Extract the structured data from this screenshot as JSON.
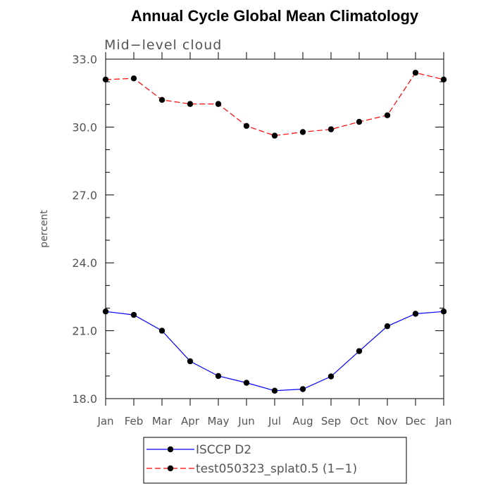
{
  "chart_data": {
    "type": "line",
    "title": "Annual Cycle Global Mean Climatology",
    "subtitle": "Mid−level cloud",
    "xlabel": "",
    "ylabel": "percent",
    "categories": [
      "Jan",
      "Feb",
      "Mar",
      "Apr",
      "May",
      "Jun",
      "Jul",
      "Aug",
      "Sep",
      "Oct",
      "Nov",
      "Dec",
      "Jan"
    ],
    "ylim": [
      18.0,
      33.0
    ],
    "yticks": [
      "18.0",
      "21.0",
      "24.0",
      "27.0",
      "30.0",
      "33.0"
    ],
    "ytick_values": [
      18,
      21,
      24,
      27,
      30,
      33
    ],
    "grid": false,
    "legend_position": "bottom",
    "series": [
      {
        "name": "ISCCP D2",
        "color": "#0000ff",
        "dash": "solid",
        "marker": "filled-circle",
        "values": [
          21.85,
          21.7,
          21.0,
          19.65,
          19.0,
          18.7,
          18.35,
          18.42,
          18.98,
          20.1,
          21.2,
          21.75,
          21.85
        ]
      },
      {
        "name": "test050323_splat0.5 (1−1)",
        "color": "#ff0000",
        "dash": "dashed",
        "marker": "filled-circle",
        "values": [
          32.1,
          32.15,
          31.2,
          31.02,
          31.02,
          30.05,
          29.62,
          29.78,
          29.9,
          30.23,
          30.52,
          32.4,
          32.1
        ]
      }
    ]
  }
}
